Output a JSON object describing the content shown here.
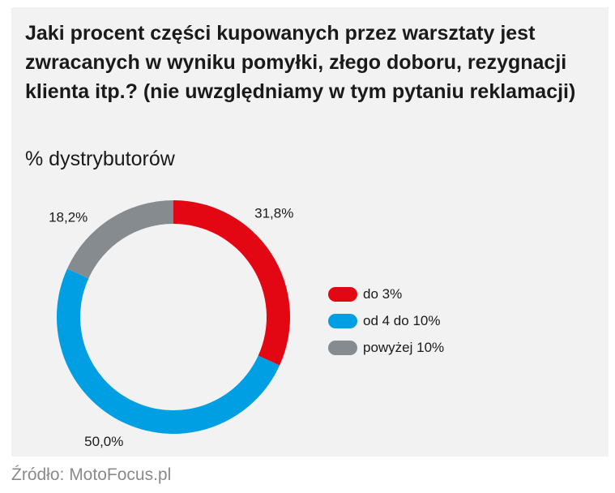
{
  "chart_data": {
    "type": "pie",
    "variant": "donut",
    "title": "Jaki procent części kupowanych przez warsztaty jest zwracanych w wyniku pomyłki, złego doboru, rezygnacji klienta itp.? (nie uwzględniamy w tym pytaniu reklamacji)",
    "subtitle": "% dystrybutorów",
    "categories": [
      "do 3%",
      "od 4 do 10%",
      "powyżej 10%"
    ],
    "values": [
      31.8,
      50.0,
      18.2
    ],
    "value_labels": [
      "31,8%",
      "50,0%",
      "18,2%"
    ],
    "colors": [
      "#e30613",
      "#009fe3",
      "#868b90"
    ],
    "legend_position": "right",
    "source": "Źródło: MotoFocus.pl"
  }
}
